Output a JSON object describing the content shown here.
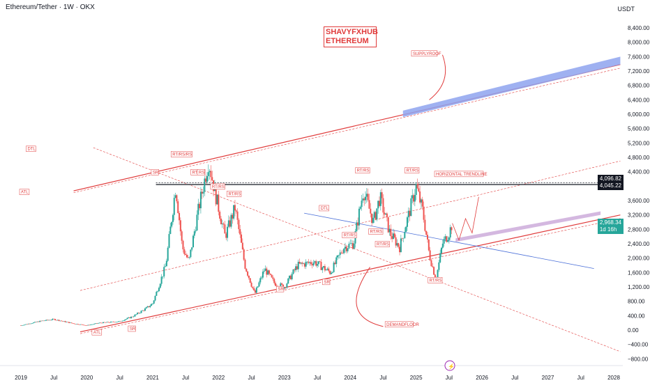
{
  "header": {
    "title": "Ethereum/Tether · 1W · OKX",
    "unit": "USDT"
  },
  "watermark": {
    "line1": "SHAVYFXHUB",
    "line2": "ETHEREUM"
  },
  "price_tags": [
    {
      "value": "4,096.82",
      "color": "#131722"
    },
    {
      "value": "4,045.22",
      "color": "#131722"
    },
    {
      "value": "2,968.34",
      "sub": "1d 16h",
      "color": "#26a69a"
    }
  ],
  "colors": {
    "up": "#26a69a",
    "down": "#ef5350",
    "trend": "#e03a3a",
    "blue": "#4a6fd8"
  },
  "chart_data": {
    "type": "candlestick",
    "title": "Ethereum/Tether · 1W · OKX",
    "ylabel": "USDT",
    "y_ticks": [
      -800,
      -400,
      0,
      400,
      800,
      1200,
      1600,
      2000,
      2400,
      2800,
      3200,
      3600,
      4400,
      4800,
      5200,
      5600,
      6000,
      6400,
      6800,
      7200,
      7600,
      8000,
      8400
    ],
    "x_ticks": [
      "2019",
      "Jul",
      "2020",
      "Jul",
      "2021",
      "Jul",
      "2022",
      "Jul",
      "2023",
      "Jul",
      "2024",
      "Jul",
      "2025",
      "Jul",
      "2026",
      "Jul",
      "2027",
      "Jul",
      "2028"
    ],
    "ylim": [
      -900,
      8700
    ],
    "price_path": [
      [
        2019.0,
        130
      ],
      [
        2019.3,
        250
      ],
      [
        2019.5,
        300
      ],
      [
        2019.8,
        180
      ],
      [
        2020.0,
        130
      ],
      [
        2020.2,
        200
      ],
      [
        2020.5,
        240
      ],
      [
        2020.7,
        380
      ],
      [
        2020.9,
        600
      ],
      [
        2021.0,
        740
      ],
      [
        2021.2,
        1800
      ],
      [
        2021.35,
        4000
      ],
      [
        2021.45,
        2300
      ],
      [
        2021.55,
        1900
      ],
      [
        2021.7,
        3400
      ],
      [
        2021.85,
        4700
      ],
      [
        2021.95,
        3800
      ],
      [
        2022.1,
        2600
      ],
      [
        2022.25,
        3400
      ],
      [
        2022.4,
        1800
      ],
      [
        2022.55,
        1000
      ],
      [
        2022.7,
        1700
      ],
      [
        2022.85,
        1300
      ],
      [
        2023.0,
        1200
      ],
      [
        2023.2,
        1800
      ],
      [
        2023.45,
        1900
      ],
      [
        2023.7,
        1600
      ],
      [
        2023.9,
        2300
      ],
      [
        2024.05,
        2400
      ],
      [
        2024.2,
        3900
      ],
      [
        2024.35,
        3000
      ],
      [
        2024.45,
        3700
      ],
      [
        2024.6,
        2700
      ],
      [
        2024.75,
        2300
      ],
      [
        2024.9,
        3300
      ],
      [
        2025.0,
        4000
      ],
      [
        2025.1,
        3300
      ],
      [
        2025.2,
        2100
      ],
      [
        2025.3,
        1400
      ],
      [
        2025.4,
        2400
      ],
      [
        2025.5,
        2700
      ],
      [
        2025.55,
        2968
      ]
    ],
    "last_price": 2968.34,
    "levels": {
      "horizontal_trendline": [
        4096.82,
        4045.22
      ]
    },
    "annotations": [
      "SUPPLYROOF",
      "HORIZONTAL TRENDLINE",
      "DEMANDFLOOR",
      "ATL",
      "DTL",
      "SR",
      "RT/RS",
      "RS",
      "RT/RS/RS",
      "RT/RS",
      "RT/RS",
      "RT/RS",
      "RT/RS",
      "RT/RS",
      "RT/RS",
      "RT/RS",
      "RT/RS",
      "DTL",
      "SR",
      "SR",
      "ATL",
      "SR"
    ]
  }
}
